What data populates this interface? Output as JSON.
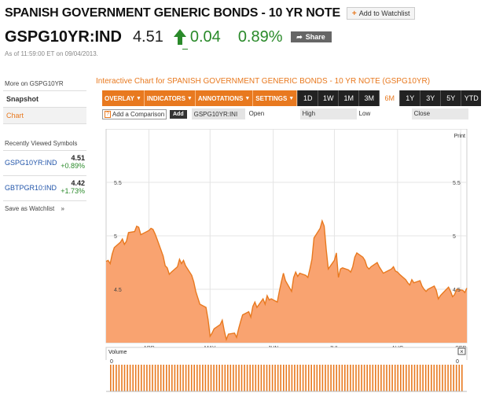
{
  "header": {
    "title": "SPANISH GOVERNMENT GENERIC BONDS - 10 YR NOTE",
    "watchlist_label": "Add to Watchlist",
    "ticker": "GSPG10YR:IND",
    "price": "4.51",
    "change": "0.04",
    "change_pct": "0.89%",
    "share_label": "Share",
    "as_of": "As of 11:59:00 ET on 09/04/2013."
  },
  "sidebar": {
    "heading": "More on GSPG10YR",
    "links": [
      "Snapshot",
      "Chart"
    ],
    "recent_heading": "Recently Viewed Symbols",
    "recent": [
      {
        "name": "GSPG10YR:IND",
        "price": "4.51",
        "change": "+0.89%"
      },
      {
        "name": "GBTPGR10:IND",
        "price": "4.42",
        "change": "+1.73%"
      }
    ],
    "save_label": "Save as Watchlist",
    "save_arrow": "»"
  },
  "chart": {
    "title": "Interactive Chart for SPANISH GOVERNMENT GENERIC BONDS - 10 YR NOTE (GSPG10YR)",
    "menus": [
      "OVERLAY",
      "INDICATORS",
      "ANNOTATIONS",
      "SETTINGS"
    ],
    "ranges": [
      "1D",
      "1W",
      "1M",
      "3M",
      "6M",
      "1Y",
      "3Y",
      "5Y",
      "YTD"
    ],
    "active_range": "6M",
    "compare_q": "?",
    "compare_placeholder": "Add a Comparison",
    "add_label": "Add",
    "symbol": "GSPG10YR:INI",
    "open_label": "Open",
    "high_label": "High",
    "low_label": "Low",
    "close_label": "Close",
    "print_label": "Print",
    "volume_label": "Volume",
    "volume_close": "×",
    "volume_zero": "0"
  },
  "chart_data": {
    "type": "area",
    "x_ticks": [
      "APR",
      "MAY",
      "JUN",
      "JUL",
      "AUG",
      "SEP"
    ],
    "y_ticks": [
      4.5,
      5,
      5.5
    ],
    "ylim": [
      4.0,
      6.0
    ],
    "colors": {
      "fill": "#f9a370",
      "line": "#e8791f"
    },
    "x": [
      "03/11",
      "03/12",
      "03/13",
      "03/14",
      "03/15",
      "03/18",
      "03/19",
      "03/20",
      "03/21",
      "03/22",
      "03/25",
      "03/26",
      "03/27",
      "03/28",
      "04/01",
      "04/02",
      "04/03",
      "04/04",
      "04/05",
      "04/08",
      "04/09",
      "04/10",
      "04/11",
      "04/12",
      "04/15",
      "04/16",
      "04/17",
      "04/18",
      "04/19",
      "04/22",
      "04/23",
      "04/24",
      "04/25",
      "04/26",
      "04/29",
      "04/30",
      "05/01",
      "05/02",
      "05/03",
      "05/06",
      "05/07",
      "05/08",
      "05/09",
      "05/10",
      "05/13",
      "05/14",
      "05/15",
      "05/16",
      "05/17",
      "05/20",
      "05/21",
      "05/22",
      "05/23",
      "05/24",
      "05/27",
      "05/28",
      "05/29",
      "05/30",
      "05/31",
      "06/03",
      "06/04",
      "06/05",
      "06/06",
      "06/07",
      "06/10",
      "06/11",
      "06/12",
      "06/13",
      "06/14",
      "06/17",
      "06/18",
      "06/19",
      "06/20",
      "06/21",
      "06/24",
      "06/25",
      "06/26",
      "06/27",
      "06/28",
      "07/01",
      "07/02",
      "07/03",
      "07/04",
      "07/05",
      "07/08",
      "07/09",
      "07/10",
      "07/11",
      "07/12",
      "07/15",
      "07/16",
      "07/17",
      "07/18",
      "07/19",
      "07/22",
      "07/23",
      "07/24",
      "07/25",
      "07/26",
      "07/29",
      "07/30",
      "07/31",
      "08/01",
      "08/02",
      "08/05",
      "08/06",
      "08/07",
      "08/08",
      "08/09",
      "08/12",
      "08/13",
      "08/14",
      "08/15",
      "08/16",
      "08/19",
      "08/20",
      "08/21",
      "08/22",
      "08/23",
      "08/26",
      "08/27",
      "08/28",
      "08/29",
      "08/30",
      "09/02",
      "09/03",
      "09/04"
    ],
    "values": [
      4.76,
      4.77,
      4.74,
      4.83,
      4.89,
      4.94,
      4.97,
      4.92,
      4.95,
      5.03,
      5.04,
      5.09,
      5.08,
      5.01,
      5.05,
      5.07,
      5.06,
      5.02,
      4.97,
      4.81,
      4.72,
      4.7,
      4.64,
      4.66,
      4.71,
      4.78,
      4.74,
      4.77,
      4.72,
      4.63,
      4.57,
      4.48,
      4.42,
      4.36,
      4.33,
      4.22,
      4.06,
      4.09,
      4.13,
      4.17,
      4.21,
      4.11,
      4.03,
      4.08,
      4.09,
      4.05,
      4.13,
      4.2,
      4.26,
      4.29,
      4.24,
      4.34,
      4.38,
      4.33,
      4.41,
      4.36,
      4.44,
      4.4,
      4.41,
      4.38,
      4.48,
      4.57,
      4.65,
      4.58,
      4.48,
      4.61,
      4.66,
      4.62,
      4.65,
      4.63,
      4.61,
      4.69,
      4.78,
      4.98,
      5.07,
      5.14,
      5.09,
      4.87,
      4.69,
      4.77,
      4.84,
      4.61,
      4.69,
      4.7,
      4.68,
      4.66,
      4.71,
      4.8,
      4.84,
      4.8,
      4.77,
      4.71,
      4.69,
      4.71,
      4.75,
      4.71,
      4.68,
      4.65,
      4.66,
      4.69,
      4.71,
      4.67,
      4.66,
      4.64,
      4.59,
      4.56,
      4.54,
      4.59,
      4.56,
      4.58,
      4.53,
      4.5,
      4.48,
      4.5,
      4.53,
      4.49,
      4.41,
      4.44,
      4.46,
      4.52,
      4.48,
      4.43,
      4.45,
      4.5,
      4.49,
      4.47,
      4.51
    ],
    "volume": {
      "label": "Volume",
      "y_ticks": [
        0
      ]
    }
  }
}
